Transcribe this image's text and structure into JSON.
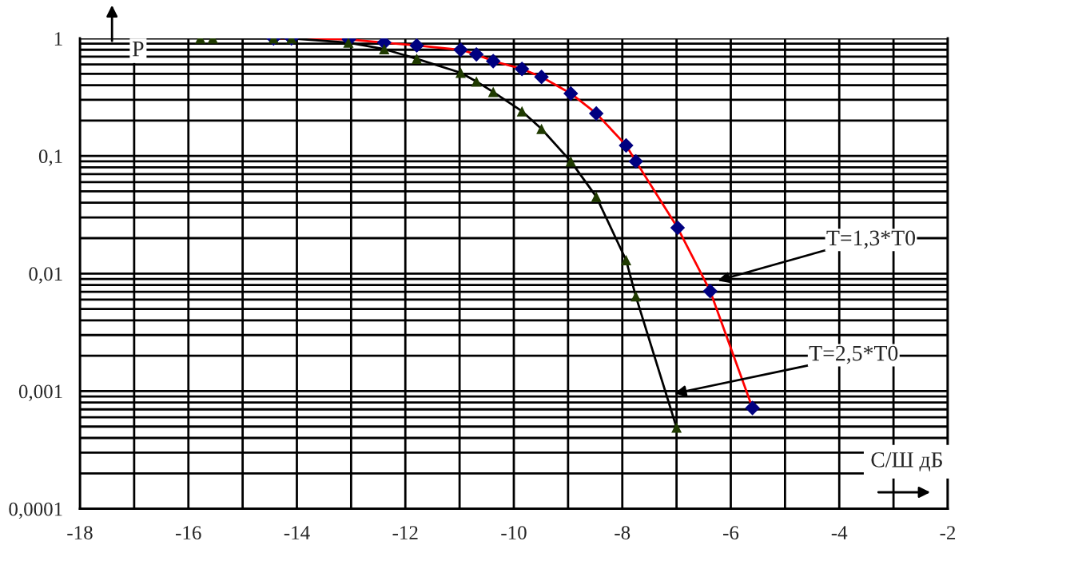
{
  "chart_data": {
    "type": "line",
    "xlabel": "С/Ш дБ",
    "ylabel": "P",
    "log": "y",
    "grid": true,
    "line_style": "solid",
    "xlim": [
      -18,
      -2
    ],
    "xticks": [
      -18,
      -16,
      -14,
      -12,
      -10,
      -8,
      -6,
      -4,
      -2
    ],
    "ylim": [
      0.0001,
      1
    ],
    "yticks": [
      {
        "value": 0.0001,
        "label": "0,0001"
      },
      {
        "value": 0.001,
        "label": "0,001"
      },
      {
        "value": 0.01,
        "label": "0,01"
      },
      {
        "value": 0.1,
        "label": "0,1"
      },
      {
        "value": 1,
        "label": "1"
      }
    ],
    "series": [
      {
        "color": "#ff0000",
        "marker": "diamond",
        "x": [
          -14.43,
          -14.1,
          -13.04,
          -12.39,
          -11.79,
          -10.98,
          -10.69,
          -10.38,
          -9.85,
          -9.49,
          -8.95,
          -8.48,
          -7.93,
          -7.75,
          -6.98,
          -6.38,
          -5.6
        ],
        "values": [
          1,
          1,
          0.98,
          0.92,
          0.87,
          0.8,
          0.73,
          0.64,
          0.55,
          0.47,
          0.34,
          0.23,
          0.123,
          0.09,
          0.0245,
          0.0071,
          0.00072
        ],
        "colors": [
          "#000080",
          "#000080",
          "#000080",
          "#000080",
          "#000080",
          "#000080",
          "#000080",
          "#000080",
          "#000080",
          "#000080",
          "#000080",
          "#000080",
          "#000080",
          "#000080",
          "#000080",
          "#000080",
          "#000080"
        ]
      },
      {
        "color": "#000000",
        "marker": "triangle",
        "x": [
          -15.78,
          -15.55,
          -14.43,
          -14.1,
          -13.05,
          -12.39,
          -11.79,
          -10.98,
          -10.69,
          -10.38,
          -9.85,
          -9.49,
          -8.95,
          -8.48,
          -7.93,
          -7.75,
          -7.0
        ],
        "values": [
          1,
          1,
          1,
          1,
          0.92,
          0.81,
          0.67,
          0.51,
          0.43,
          0.35,
          0.24,
          0.17,
          0.09,
          0.045,
          0.013,
          0.0064,
          0.00049
        ],
        "colors": [
          "#1f3a00",
          "#1f3a00",
          "#1f3a00",
          "#1f3a00",
          "#1f3a00",
          "#1f3a00",
          "#1f3a00",
          "#1f3a00",
          "#1f3a00",
          "#1f3a00",
          "#1f3a00",
          "#1f3a00",
          "#1f3a00",
          "#1f3a00",
          "#1f3a00",
          "#1f3a00",
          "#1f3a00"
        ]
      }
    ],
    "annotations": [
      "T=1,3*T0",
      "T=2,5*T0"
    ]
  }
}
